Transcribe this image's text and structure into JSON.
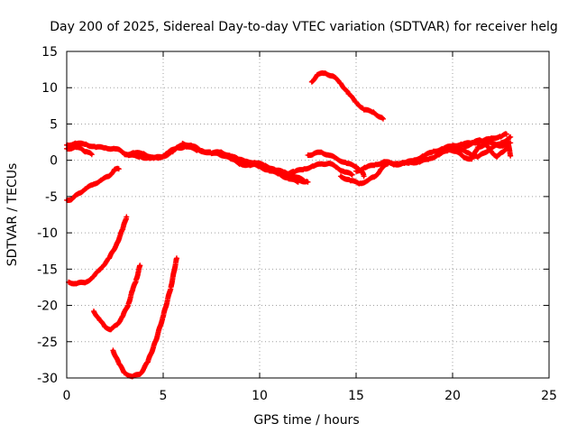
{
  "chart_data": {
    "type": "scatter",
    "title": "Day 200 of 2025, Sidereal Day-to-day VTEC variation (SDTVAR) for receiver helg",
    "xlabel": "GPS time / hours",
    "ylabel": "SDTVAR / TECUs",
    "xlim": [
      0,
      25
    ],
    "ylim": [
      -30,
      15
    ],
    "xticks": [
      0,
      5,
      10,
      15,
      20,
      25
    ],
    "yticks": [
      -30,
      -25,
      -20,
      -15,
      -10,
      -5,
      0,
      5,
      10,
      15
    ],
    "grid": true,
    "marker": "plus",
    "color": "#ff0000",
    "series": [
      {
        "name": "arc-1",
        "points": [
          [
            0.0,
            -5.5
          ],
          [
            0.3,
            -5.3
          ],
          [
            0.6,
            -4.6
          ],
          [
            1.0,
            -3.9
          ],
          [
            1.4,
            -3.3
          ],
          [
            1.8,
            -2.7
          ],
          [
            2.2,
            -2.2
          ],
          [
            2.5,
            -1.2
          ],
          [
            2.7,
            -1.2
          ]
        ]
      },
      {
        "name": "arc-2",
        "points": [
          [
            0.1,
            -16.8
          ],
          [
            0.5,
            -17.0
          ],
          [
            1.0,
            -16.8
          ],
          [
            1.4,
            -16.0
          ],
          [
            1.8,
            -14.8
          ],
          [
            2.2,
            -13.5
          ],
          [
            2.6,
            -11.5
          ],
          [
            2.9,
            -9.5
          ],
          [
            3.1,
            -7.8
          ]
        ]
      },
      {
        "name": "arc-3",
        "points": [
          [
            1.4,
            -20.8
          ],
          [
            1.7,
            -22.0
          ],
          [
            2.0,
            -23.0
          ],
          [
            2.3,
            -23.3
          ],
          [
            2.6,
            -22.7
          ],
          [
            2.9,
            -21.5
          ],
          [
            3.2,
            -19.8
          ],
          [
            3.4,
            -18.0
          ],
          [
            3.6,
            -16.5
          ],
          [
            3.8,
            -14.5
          ]
        ]
      },
      {
        "name": "arc-4",
        "points": [
          [
            2.4,
            -26.2
          ],
          [
            2.7,
            -28.0
          ],
          [
            3.0,
            -29.3
          ],
          [
            3.4,
            -29.8
          ],
          [
            3.8,
            -29.5
          ],
          [
            4.2,
            -27.8
          ],
          [
            4.6,
            -25.0
          ],
          [
            5.0,
            -21.5
          ],
          [
            5.4,
            -17.5
          ],
          [
            5.7,
            -13.5
          ]
        ]
      },
      {
        "name": "arc-5",
        "points": [
          [
            0.0,
            1.6
          ],
          [
            0.5,
            1.8
          ],
          [
            0.8,
            1.5
          ],
          [
            1.0,
            1.2
          ],
          [
            1.3,
            0.8
          ]
        ]
      },
      {
        "name": "arc-6",
        "points": [
          [
            0.0,
            2.1
          ],
          [
            0.5,
            2.3
          ],
          [
            1.0,
            2.2
          ],
          [
            1.5,
            1.8
          ],
          [
            2.0,
            1.7
          ],
          [
            2.5,
            1.6
          ],
          [
            2.8,
            1.3
          ],
          [
            3.2,
            0.7
          ],
          [
            3.8,
            0.5
          ],
          [
            4.3,
            0.3
          ],
          [
            4.8,
            0.3
          ],
          [
            5.2,
            1.0
          ],
          [
            5.7,
            1.7
          ],
          [
            6.2,
            1.9
          ],
          [
            6.8,
            1.4
          ],
          [
            7.5,
            1.0
          ],
          [
            8.2,
            0.7
          ],
          [
            8.8,
            0.2
          ],
          [
            9.3,
            -0.2
          ],
          [
            9.8,
            -0.3
          ],
          [
            10.3,
            -0.8
          ],
          [
            10.8,
            -1.3
          ],
          [
            11.3,
            -1.7
          ],
          [
            11.8,
            -2.2
          ],
          [
            12.3,
            -2.8
          ]
        ]
      },
      {
        "name": "arc-7",
        "points": [
          [
            3.0,
            0.8
          ],
          [
            3.5,
            1.0
          ],
          [
            4.0,
            0.9
          ],
          [
            4.5,
            0.3
          ],
          [
            5.0,
            0.5
          ],
          [
            5.5,
            1.2
          ],
          [
            6.0,
            2.3
          ],
          [
            6.5,
            2.0
          ],
          [
            7.0,
            1.3
          ],
          [
            7.5,
            1.0
          ],
          [
            8.0,
            1.1
          ],
          [
            8.5,
            0.6
          ],
          [
            9.0,
            0.0
          ],
          [
            9.5,
            -0.4
          ],
          [
            10.0,
            -0.9
          ],
          [
            10.5,
            -1.4
          ],
          [
            11.0,
            -1.9
          ],
          [
            11.5,
            -2.5
          ],
          [
            12.0,
            -3.0
          ]
        ]
      },
      {
        "name": "arc-8",
        "points": [
          [
            7.8,
            1.0
          ],
          [
            8.5,
            0.2
          ],
          [
            9.0,
            -0.5
          ],
          [
            9.5,
            -0.7
          ],
          [
            10.0,
            -0.6
          ],
          [
            10.5,
            -1.1
          ],
          [
            11.0,
            -1.6
          ],
          [
            11.5,
            -2.3
          ],
          [
            12.0,
            -2.7
          ],
          [
            12.5,
            -3.0
          ]
        ]
      },
      {
        "name": "arc-9",
        "points": [
          [
            11.2,
            -2.0
          ],
          [
            11.8,
            -1.6
          ],
          [
            12.3,
            -1.2
          ],
          [
            12.8,
            -0.8
          ],
          [
            13.2,
            -0.5
          ],
          [
            13.6,
            -0.4
          ],
          [
            14.0,
            -1.0
          ],
          [
            14.4,
            -1.6
          ],
          [
            14.8,
            -2.0
          ]
        ]
      },
      {
        "name": "arc-10",
        "points": [
          [
            12.5,
            0.7
          ],
          [
            12.8,
            0.9
          ],
          [
            13.2,
            1.1
          ],
          [
            13.6,
            0.7
          ],
          [
            14.0,
            0.2
          ],
          [
            14.5,
            -0.4
          ],
          [
            15.0,
            -0.9
          ],
          [
            15.3,
            -1.5
          ],
          [
            15.4,
            -2.2
          ]
        ]
      },
      {
        "name": "arc-11",
        "points": [
          [
            14.2,
            -2.2
          ],
          [
            14.7,
            -2.8
          ],
          [
            15.2,
            -3.2
          ],
          [
            15.6,
            -2.8
          ],
          [
            16.0,
            -2.2
          ],
          [
            16.3,
            -1.2
          ],
          [
            16.7,
            -0.3
          ],
          [
            17.2,
            -0.5
          ],
          [
            17.8,
            -0.3
          ],
          [
            18.3,
            -0.2
          ],
          [
            18.8,
            0.2
          ],
          [
            19.3,
            0.8
          ],
          [
            19.8,
            1.4
          ],
          [
            20.3,
            1.6
          ],
          [
            20.8,
            1.0
          ],
          [
            21.3,
            0.5
          ],
          [
            21.6,
            0.9
          ],
          [
            22.0,
            1.7
          ],
          [
            22.5,
            2.3
          ],
          [
            23.0,
            3.2
          ]
        ]
      },
      {
        "name": "arc-12",
        "points": [
          [
            15.0,
            -1.5
          ],
          [
            15.5,
            -1.0
          ],
          [
            16.0,
            -0.6
          ],
          [
            16.5,
            -0.2
          ],
          [
            17.0,
            -0.6
          ],
          [
            17.5,
            -0.4
          ],
          [
            18.0,
            0.0
          ],
          [
            18.5,
            0.6
          ],
          [
            19.0,
            1.2
          ],
          [
            19.5,
            1.6
          ],
          [
            20.0,
            2.0
          ],
          [
            20.5,
            2.2
          ],
          [
            21.0,
            2.4
          ],
          [
            21.5,
            2.6
          ],
          [
            22.0,
            3.0
          ],
          [
            22.5,
            3.3
          ],
          [
            22.8,
            3.6
          ]
        ]
      },
      {
        "name": "arc-13",
        "points": [
          [
            19.8,
            1.6
          ],
          [
            20.2,
            1.2
          ],
          [
            20.6,
            0.4
          ],
          [
            21.0,
            0.2
          ],
          [
            21.3,
            1.8
          ],
          [
            21.7,
            2.2
          ],
          [
            22.0,
            1.2
          ],
          [
            22.3,
            0.5
          ],
          [
            22.6,
            1.1
          ],
          [
            22.9,
            2.1
          ],
          [
            23.0,
            0.6
          ]
        ]
      },
      {
        "name": "arc-14",
        "points": [
          [
            20.6,
            1.9
          ],
          [
            21.0,
            2.3
          ],
          [
            21.4,
            2.8
          ],
          [
            21.8,
            2.5
          ],
          [
            22.2,
            2.2
          ],
          [
            22.6,
            2.0
          ],
          [
            23.0,
            2.4
          ]
        ]
      },
      {
        "name": "arc-15",
        "points": [
          [
            12.7,
            10.8
          ],
          [
            13.0,
            11.8
          ],
          [
            13.4,
            12.0
          ],
          [
            13.8,
            11.6
          ],
          [
            14.2,
            10.6
          ],
          [
            14.6,
            9.2
          ],
          [
            15.0,
            8.0
          ],
          [
            15.4,
            7.0
          ],
          [
            15.9,
            6.6
          ],
          [
            16.4,
            5.7
          ]
        ]
      }
    ]
  }
}
